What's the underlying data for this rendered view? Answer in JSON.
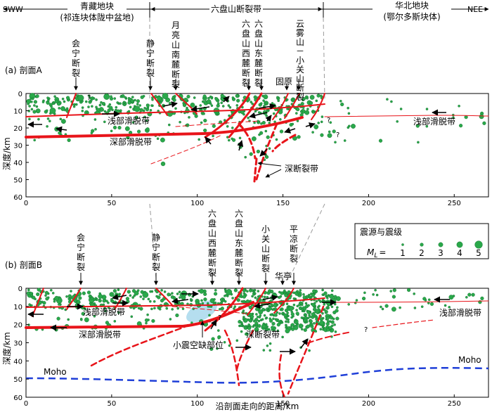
{
  "header": {
    "left_end": "SWW",
    "right_end": "NEE",
    "block_left_line1": "青藏地块",
    "block_left_line2": "(祁连块体陇中盆地)",
    "block_center": "六盘山断裂带",
    "block_right_line1": "华北地块",
    "block_right_line2": "(鄂尔多斯块体)"
  },
  "panel_a": {
    "label": "(a) 剖面A",
    "faults": {
      "huining": "会宁断裂",
      "jingning": "静宁断裂",
      "yueliang": "月亮山南麓断裂",
      "west": "六盘山西麓断裂",
      "east": "六盘山东麓断裂",
      "yunwu": "云雾山－小关山断裂"
    },
    "guyuan": "固原",
    "shallow1": "浅部滑脱带",
    "shallow2": "浅部滑脱带",
    "deep": "深部滑脱带",
    "deep_fault": "深断裂带",
    "q": "?"
  },
  "panel_b": {
    "label": "(b) 剖面B",
    "faults": {
      "huining": "会宁断裂",
      "jingning": "静宁断裂",
      "west": "六盘山西麓断裂",
      "east": "六盘山东麓断裂",
      "xiaoguan": "小关山断裂",
      "pingliang": "平凉断裂"
    },
    "huating": "华亭",
    "shallow1": "浅部滑脱带",
    "shallow2": "浅部滑脱带",
    "deep": "深部滑脱带",
    "deep_fault": "深断裂带",
    "gap": "小震空缺部位",
    "moho1": "Moho",
    "moho2": "Moho",
    "q": "?"
  },
  "legend": {
    "title": "震源与震级",
    "ml": "M",
    "ml_sub": "L",
    "eq": "=",
    "mags": [
      "1",
      "2",
      "3",
      "4",
      "5"
    ]
  },
  "axes": {
    "ylabel": "深度/km",
    "xlabel": "沿剖面走向的距离/km",
    "x_ticks": [
      "0",
      "50",
      "100",
      "150",
      "200",
      "250"
    ],
    "y_ticks": [
      "0",
      "10",
      "20",
      "30",
      "40",
      "50",
      "60"
    ]
  },
  "colors": {
    "fault": "#e8141a",
    "quake_fill": "#2aa84a",
    "quake_stroke": "#0e6a2a",
    "moho": "#1f3fd8",
    "gap": "#a8d8ec",
    "guide": "#9a9a9a"
  }
}
